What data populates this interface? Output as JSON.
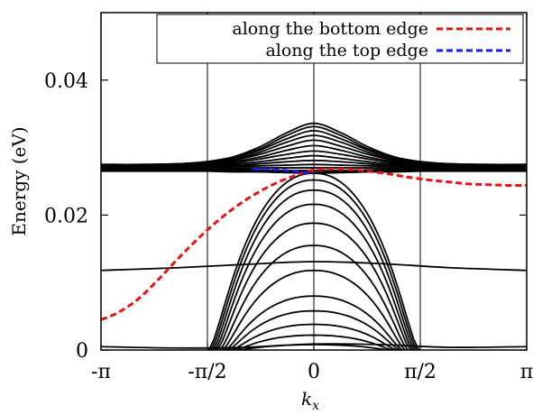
{
  "chart_data": {
    "type": "line",
    "title": "",
    "xlabel": "k",
    "xlabel_sub": "x",
    "ylabel": "Energy (eV)",
    "xlim": [
      -3.14159,
      3.14159
    ],
    "ylim": [
      0,
      0.05
    ],
    "x_ticks": [
      {
        "value": -3.14159,
        "label": "-π"
      },
      {
        "value": -1.5708,
        "label": "-π/2"
      },
      {
        "value": 0,
        "label": "0"
      },
      {
        "value": 1.5708,
        "label": "π/2"
      },
      {
        "value": 3.14159,
        "label": "π"
      }
    ],
    "y_ticks": [
      {
        "value": 0,
        "label": "0"
      },
      {
        "value": 0.02,
        "label": "0.02"
      },
      {
        "value": 0.04,
        "label": "0.04"
      }
    ],
    "vertical_guides": [
      -1.5708,
      0,
      1.5708
    ],
    "legend_position": "top-right",
    "series": [
      {
        "name": "along the bottom edge",
        "color": "#ee1111",
        "dashed": true,
        "x": [
          -3.14,
          -2.9,
          -2.6,
          -2.3,
          -2.0,
          -1.7,
          -1.4,
          -1.1,
          -0.8,
          -0.5,
          -0.2,
          0,
          0.2,
          0.5,
          0.8,
          1.1,
          1.4,
          1.7,
          2.0,
          2.3,
          2.6,
          2.9,
          3.14
        ],
        "y": [
          0.0045,
          0.0055,
          0.0075,
          0.0104,
          0.0136,
          0.0166,
          0.0193,
          0.0216,
          0.0235,
          0.025,
          0.0261,
          0.0267,
          0.0268,
          0.0268,
          0.0265,
          0.0261,
          0.0256,
          0.0252,
          0.0249,
          0.0246,
          0.0245,
          0.0244,
          0.0244
        ]
      },
      {
        "name": "along the top edge",
        "color": "#1a1aee",
        "dashed": true,
        "x": [
          -0.9,
          -0.7,
          -0.5,
          -0.3,
          -0.15,
          0
        ],
        "y": [
          0.0268,
          0.0268,
          0.0267,
          0.0265,
          0.0263,
          0.0262
        ]
      },
      {
        "color": "#000000",
        "group": "bulk bands",
        "x": [
          -3.14,
          -2.5,
          -2.0,
          -1.6,
          -1.2,
          -0.8,
          -0.4,
          0,
          0.4,
          0.8,
          1.2,
          1.6,
          2.0,
          2.5,
          3.14
        ],
        "y_sets": [
          [
            0.0275,
            0.0275,
            0.0276,
            0.0279,
            0.0286,
            0.0301,
            0.0322,
            0.0336,
            0.0322,
            0.0301,
            0.0286,
            0.0279,
            0.0276,
            0.0275,
            0.0275
          ],
          [
            0.0275,
            0.0275,
            0.0276,
            0.0278,
            0.0285,
            0.0298,
            0.0318,
            0.0331,
            0.0318,
            0.0298,
            0.0285,
            0.0278,
            0.0276,
            0.0275,
            0.0275
          ],
          [
            0.0274,
            0.0274,
            0.0275,
            0.0278,
            0.0284,
            0.0296,
            0.0313,
            0.0325,
            0.0313,
            0.0296,
            0.0284,
            0.0278,
            0.0275,
            0.0274,
            0.0274
          ],
          [
            0.0274,
            0.0274,
            0.0275,
            0.0277,
            0.0282,
            0.0293,
            0.0308,
            0.0318,
            0.0308,
            0.0293,
            0.0282,
            0.0277,
            0.0275,
            0.0274,
            0.0274
          ],
          [
            0.0273,
            0.0273,
            0.0274,
            0.0276,
            0.0281,
            0.029,
            0.0302,
            0.0311,
            0.0302,
            0.029,
            0.0281,
            0.0276,
            0.0274,
            0.0273,
            0.0273
          ],
          [
            0.0273,
            0.0273,
            0.0273,
            0.0275,
            0.0279,
            0.0286,
            0.0296,
            0.0303,
            0.0296,
            0.0286,
            0.0279,
            0.0275,
            0.0273,
            0.0273,
            0.0273
          ],
          [
            0.0272,
            0.0272,
            0.0273,
            0.0274,
            0.0277,
            0.0283,
            0.029,
            0.0295,
            0.029,
            0.0283,
            0.0277,
            0.0274,
            0.0273,
            0.0272,
            0.0272
          ],
          [
            0.0271,
            0.0271,
            0.0272,
            0.0273,
            0.0275,
            0.0279,
            0.0284,
            0.0288,
            0.0284,
            0.0279,
            0.0275,
            0.0273,
            0.0272,
            0.0271,
            0.0271
          ],
          [
            0.0271,
            0.0271,
            0.0271,
            0.0272,
            0.0273,
            0.0276,
            0.0279,
            0.0281,
            0.0279,
            0.0276,
            0.0273,
            0.0272,
            0.0271,
            0.0271,
            0.0271
          ],
          [
            0.027,
            0.027,
            0.027,
            0.0271,
            0.0272,
            0.0273,
            0.0274,
            0.0275,
            0.0274,
            0.0273,
            0.0272,
            0.0271,
            0.027,
            0.027,
            0.027
          ],
          [
            0.0269,
            0.0269,
            0.0269,
            0.027,
            0.027,
            0.027,
            0.027,
            0.027,
            0.027,
            0.027,
            0.027,
            0.027,
            0.0269,
            0.0269,
            0.0269
          ],
          [
            0.0268,
            0.0268,
            0.0268,
            0.0268,
            0.0268,
            0.0267,
            0.0266,
            0.0266,
            0.0266,
            0.0267,
            0.0268,
            0.0268,
            0.0268,
            0.0268,
            0.0268
          ],
          [
            0.0267,
            0.0267,
            0.0267,
            0.0267,
            0.0266,
            0.0265,
            0.0264,
            0.0263,
            0.0264,
            0.0265,
            0.0266,
            0.0267,
            0.0267,
            0.0267,
            0.0267
          ],
          [
            0.0266,
            0.0266,
            0.0266,
            0.0266,
            0.0265,
            0.0264,
            0.0263,
            0.0262,
            0.0263,
            0.0264,
            0.0265,
            0.0266,
            0.0266,
            0.0266,
            0.0266
          ],
          [
            0.0265,
            0.0265,
            0.0265,
            0.0265,
            0.0264,
            0.0264,
            0.0263,
            0.0263,
            0.0263,
            0.0264,
            0.0264,
            0.0265,
            0.0265,
            0.0265,
            0.0265
          ]
        ]
      },
      {
        "color": "#000000",
        "group": "dome bands",
        "apex": [
          0.0262,
          0.0252,
          0.0237,
          0.0216,
          0.0188,
          0.0155,
          0.0118,
          0.008,
          0.0058,
          0.0038,
          0.0022,
          0.0008
        ],
        "edge_half_width": [
          1.55,
          1.52,
          1.49,
          1.46,
          1.43,
          1.39,
          1.35,
          1.31,
          1.27,
          1.22,
          1.17,
          1.12
        ]
      },
      {
        "color": "#000000",
        "group": "flat band",
        "x": [
          -3.14,
          -2.0,
          -1.0,
          0,
          1.0,
          2.0,
          3.14
        ],
        "y": [
          0.0118,
          0.0122,
          0.0127,
          0.0131,
          0.0128,
          0.0122,
          0.0118
        ]
      },
      {
        "color": "#000000",
        "group": "low band",
        "x": [
          -3.14,
          -2.0,
          -1.0,
          0,
          1.0,
          2.0,
          3.14
        ],
        "y": [
          0.0005,
          0.0003,
          0.0004,
          0.0009,
          0.0008,
          0.0004,
          0.0005
        ]
      }
    ]
  }
}
